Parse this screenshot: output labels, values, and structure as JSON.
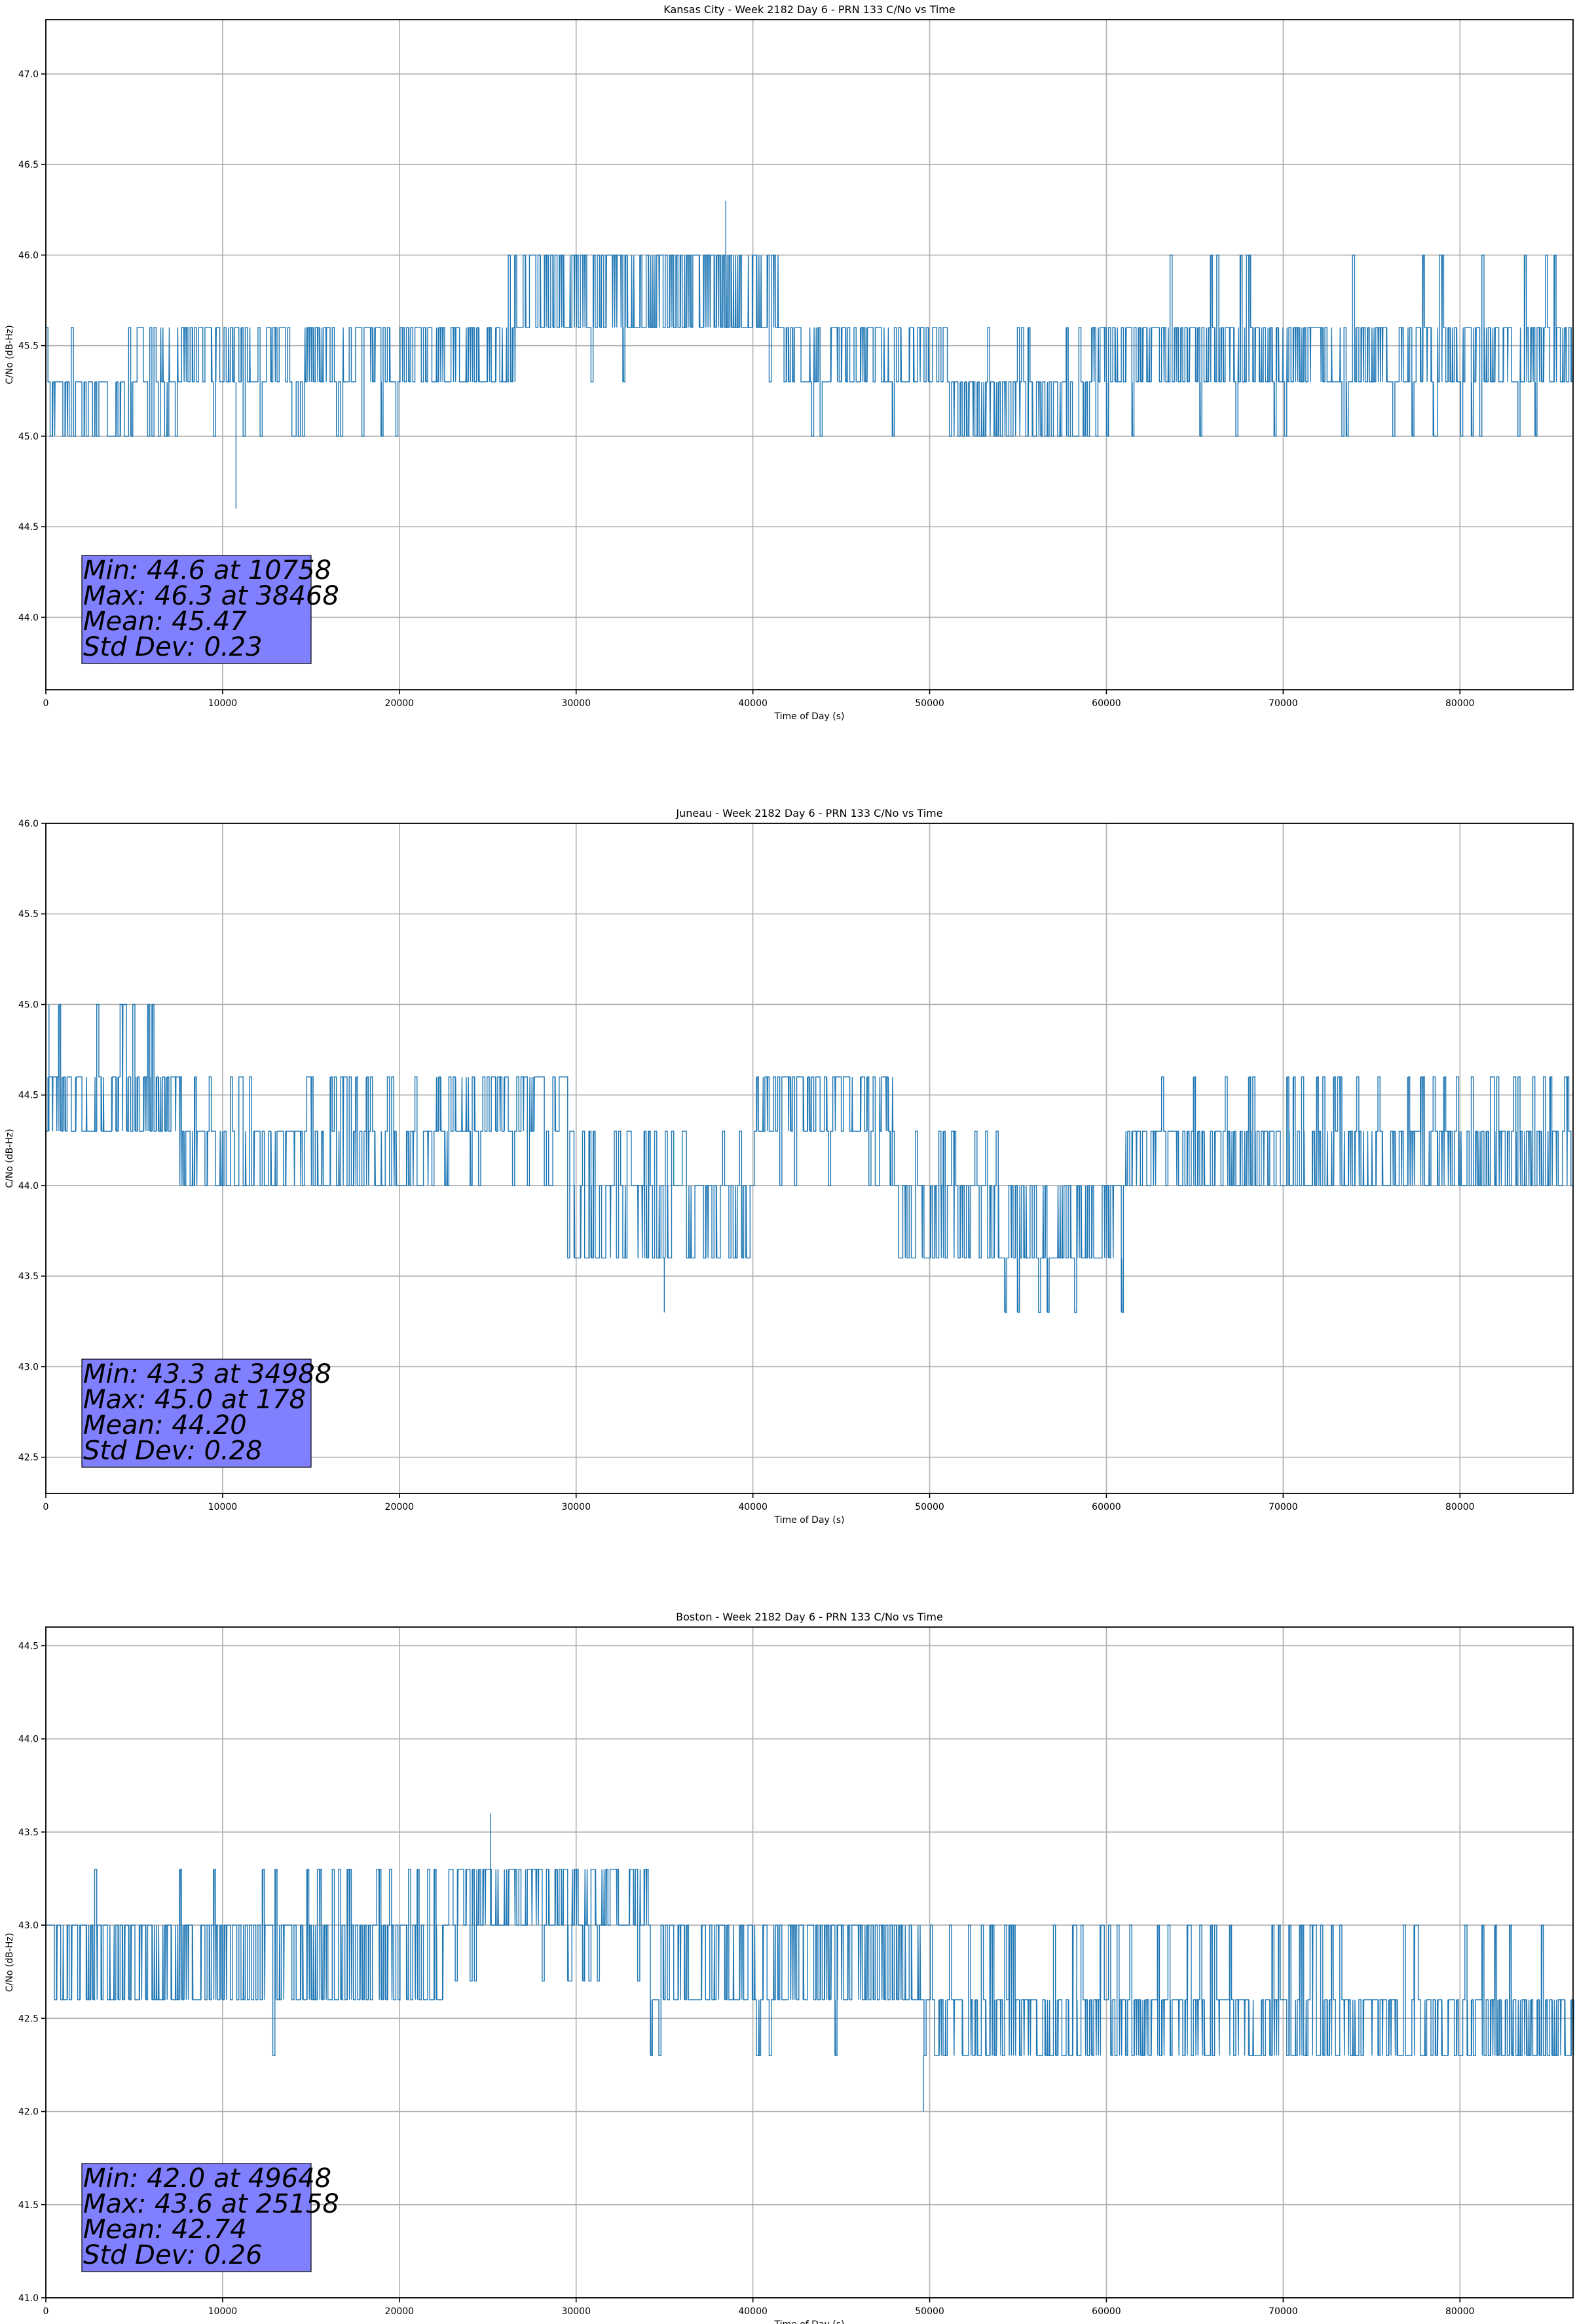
{
  "figure": {
    "series_color": "#1f77b4",
    "stats_box_color": "#8080ff",
    "grid_color": "#b0b0b0"
  },
  "chart_data": [
    {
      "type": "line",
      "title": "Kansas City - Week 2182 Day 6 - PRN 133 C/No vs Time",
      "xlabel": "Time of Day (s)",
      "ylabel": "C/No (dB-Hz)",
      "xlim": [
        0,
        86400
      ],
      "ylim": [
        43.6,
        47.3
      ],
      "xticks": [
        0,
        10000,
        20000,
        30000,
        40000,
        50000,
        60000,
        70000,
        80000
      ],
      "xtick_labels": [
        "0",
        "10000",
        "20000",
        "30000",
        "40000",
        "50000",
        "60000",
        "70000",
        "80000"
      ],
      "yticks": [
        44.0,
        44.5,
        45.0,
        45.5,
        46.0,
        46.5,
        47.0
      ],
      "ytick_labels": [
        "44.0",
        "44.5",
        "45.0",
        "45.5",
        "46.0",
        "46.5",
        "47.0"
      ],
      "grid": true,
      "quantization": 0.3,
      "segments": [
        {
          "x_start": 0,
          "x_end": 5000,
          "low": 45.0,
          "high": 45.3,
          "density": 0.35,
          "up_spikes": 45.6,
          "up_prob": 0.15
        },
        {
          "x_start": 5000,
          "x_end": 22000,
          "low": 45.3,
          "high": 45.6,
          "density": 0.25,
          "down_prob": 0.35
        },
        {
          "x_start": 22000,
          "x_end": 27000,
          "low": 45.3,
          "high": 45.6,
          "density": 0.5,
          "up_spikes": 46.0,
          "up_prob": 0.25
        },
        {
          "x_start": 27000,
          "x_end": 41500,
          "low": 45.6,
          "high": 46.0,
          "density": 0.45,
          "down_prob": 0.05
        },
        {
          "x_start": 41500,
          "x_end": 51000,
          "low": 45.3,
          "high": 45.6,
          "density": 0.3,
          "down_prob": 0.1
        },
        {
          "x_start": 51000,
          "x_end": 59000,
          "low": 45.0,
          "high": 45.3,
          "density": 0.35,
          "up_spikes": 45.6,
          "up_prob": 0.25
        },
        {
          "x_start": 59000,
          "x_end": 86400,
          "low": 45.3,
          "high": 45.6,
          "density": 0.45,
          "up_spikes": 46.0,
          "up_prob": 0.15,
          "down_prob": 0.25
        }
      ],
      "extremes": [
        {
          "label": "min",
          "x": 10758,
          "y": 44.6
        },
        {
          "label": "max",
          "x": 38468,
          "y": 46.3
        }
      ],
      "stats": {
        "min": "Min: 44.6 at 10758",
        "max": "Max: 46.3 at 38468",
        "mean": "Mean: 45.47",
        "std": "Std Dev: 0.23"
      }
    },
    {
      "type": "line",
      "title": "Juneau - Week 2182 Day 6 - PRN 133 C/No vs Time",
      "xlabel": "Time of Day (s)",
      "ylabel": "C/No (dB-Hz)",
      "xlim": [
        0,
        86400
      ],
      "ylim": [
        42.3,
        46.0
      ],
      "xticks": [
        0,
        10000,
        20000,
        30000,
        40000,
        50000,
        60000,
        70000,
        80000
      ],
      "xtick_labels": [
        "0",
        "10000",
        "20000",
        "30000",
        "40000",
        "50000",
        "60000",
        "70000",
        "80000"
      ],
      "yticks": [
        42.5,
        43.0,
        43.5,
        44.0,
        44.5,
        45.0,
        45.5,
        46.0
      ],
      "ytick_labels": [
        "42.5",
        "43.0",
        "43.5",
        "44.0",
        "44.5",
        "45.0",
        "45.5",
        "46.0"
      ],
      "grid": true,
      "quantization": 0.3,
      "segments": [
        {
          "x_start": 0,
          "x_end": 7500,
          "low": 44.3,
          "high": 44.6,
          "density": 0.45,
          "up_spikes": 45.0,
          "up_prob": 0.3
        },
        {
          "x_start": 7500,
          "x_end": 22000,
          "low": 44.0,
          "high": 44.3,
          "density": 0.3,
          "up_spikes": 44.6,
          "up_prob": 0.3
        },
        {
          "x_start": 22000,
          "x_end": 29500,
          "low": 44.3,
          "high": 44.6,
          "density": 0.35,
          "down_prob": 0.3
        },
        {
          "x_start": 29500,
          "x_end": 40000,
          "low": 43.6,
          "high": 44.0,
          "density": 0.3,
          "up_spikes": 44.3,
          "up_prob": 0.35
        },
        {
          "x_start": 40000,
          "x_end": 48000,
          "low": 44.3,
          "high": 44.6,
          "density": 0.35,
          "down_prob": 0.4
        },
        {
          "x_start": 48000,
          "x_end": 54000,
          "low": 43.6,
          "high": 44.0,
          "density": 0.35,
          "up_spikes": 44.3,
          "up_prob": 0.3
        },
        {
          "x_start": 54000,
          "x_end": 61000,
          "low": 43.6,
          "high": 44.0,
          "density": 0.45,
          "down_spikes": 43.3,
          "down_prob": 0.3
        },
        {
          "x_start": 61000,
          "x_end": 86400,
          "low": 44.0,
          "high": 44.3,
          "density": 0.45,
          "up_spikes": 44.6,
          "up_prob": 0.35
        }
      ],
      "extremes": [
        {
          "label": "min",
          "x": 34988,
          "y": 43.3
        },
        {
          "label": "max",
          "x": 178,
          "y": 45.0
        }
      ],
      "stats": {
        "min": "Min: 43.3 at 34988",
        "max": "Max: 45.0 at 178",
        "mean": "Mean: 44.20",
        "std": "Std Dev: 0.28"
      }
    },
    {
      "type": "line",
      "title": "Boston - Week 2182 Day 6 - PRN 133 C/No vs Time",
      "xlabel": "Time of Day (s)",
      "ylabel": "C/No (dB-Hz)",
      "xlim": [
        0,
        86400
      ],
      "ylim": [
        41.0,
        44.6
      ],
      "xticks": [
        0,
        10000,
        20000,
        30000,
        40000,
        50000,
        60000,
        70000,
        80000
      ],
      "xtick_labels": [
        "0",
        "10000",
        "20000",
        "30000",
        "40000",
        "50000",
        "60000",
        "70000",
        "80000"
      ],
      "yticks": [
        41.0,
        41.5,
        42.0,
        42.5,
        43.0,
        43.5,
        44.0,
        44.5
      ],
      "ytick_labels": [
        "41.0",
        "41.5",
        "42.0",
        "42.5",
        "43.0",
        "43.5",
        "44.0",
        "44.5"
      ],
      "grid": true,
      "quantization": 0.3,
      "segments": [
        {
          "x_start": 0,
          "x_end": 22500,
          "low": 42.6,
          "high": 43.0,
          "density": 0.4,
          "up_spikes": 43.3,
          "up_prob": 0.25,
          "down_prob": 0.05
        },
        {
          "x_start": 22500,
          "x_end": 34000,
          "low": 43.0,
          "high": 43.3,
          "density": 0.45,
          "down_prob": 0.3
        },
        {
          "x_start": 34000,
          "x_end": 49500,
          "low": 42.6,
          "high": 43.0,
          "density": 0.4,
          "down_prob": 0.15
        },
        {
          "x_start": 49500,
          "x_end": 86400,
          "low": 42.3,
          "high": 42.6,
          "density": 0.45,
          "up_spikes": 43.0,
          "up_prob": 0.3
        }
      ],
      "extremes": [
        {
          "label": "min",
          "x": 49648,
          "y": 42.0
        },
        {
          "label": "max",
          "x": 25158,
          "y": 43.6
        }
      ],
      "stats": {
        "min": "Min: 42.0 at 49648",
        "max": "Max: 43.6 at 25158",
        "mean": "Mean: 42.74",
        "std": "Std Dev: 0.26"
      }
    }
  ]
}
